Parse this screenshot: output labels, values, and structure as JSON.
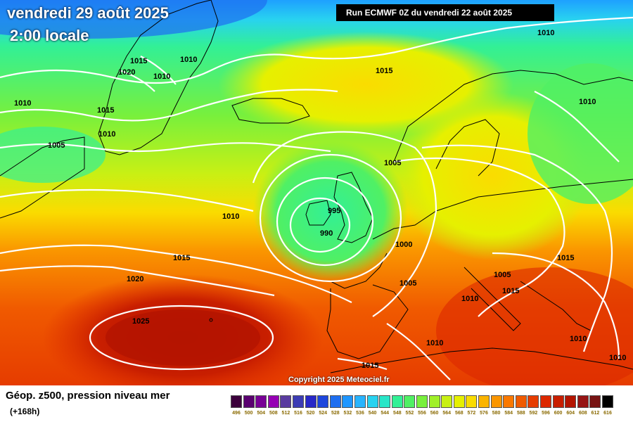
{
  "header": {
    "date_line": "vendredi 29 août 2025",
    "time_line": "2:00 locale",
    "run_label": "Run ECMWF 0Z du vendredi 22 août 2025"
  },
  "copyright": "Copyright 2025 Meteociel.fr",
  "legend": {
    "title": "Géop. z500, pression niveau mer",
    "subtitle": "(+168h)",
    "ticks": [
      "496",
      "500",
      "504",
      "508",
      "512",
      "516",
      "520",
      "524",
      "528",
      "532",
      "536",
      "540",
      "544",
      "548",
      "552",
      "556",
      "560",
      "564",
      "568",
      "572",
      "576",
      "580",
      "584",
      "588",
      "592",
      "596",
      "600",
      "604",
      "608",
      "612",
      "616"
    ],
    "colors": [
      "#3c003c",
      "#5a0070",
      "#780096",
      "#9600b4",
      "#5a3ca0",
      "#3c3cb4",
      "#2828c8",
      "#1e46dc",
      "#1e6ef0",
      "#1e96ff",
      "#28b4ff",
      "#28d2f0",
      "#28e6c8",
      "#32f096",
      "#50f064",
      "#78f03c",
      "#a0f028",
      "#c8f014",
      "#e6f000",
      "#fadc00",
      "#fab400",
      "#fa9600",
      "#fa7800",
      "#f05a00",
      "#e63c00",
      "#dc2800",
      "#c81e00",
      "#b41400",
      "#961414",
      "#781414",
      "#000000"
    ]
  },
  "isobars": {
    "labels": [
      "1015",
      "1020",
      "1010",
      "1010",
      "1010",
      "1015",
      "1010",
      "1005",
      "1015",
      "1010",
      "1010",
      "1005",
      "995",
      "990",
      "1000",
      "1010",
      "1015",
      "1020",
      "1025",
      "1005",
      "1005",
      "1010",
      "1015",
      "1015",
      "1010",
      "1010",
      "1015",
      "1010"
    ]
  }
}
